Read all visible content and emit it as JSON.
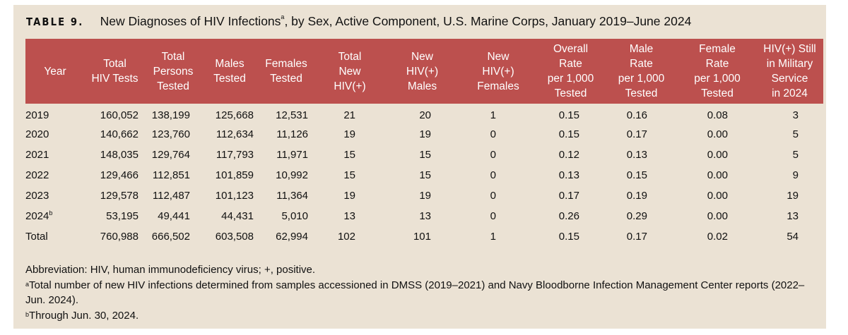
{
  "title": {
    "label": "TABLE 9.",
    "text": "New Diagnoses of HIV Infections",
    "sup": "a",
    "rest": ", by Sex, Active Component, U.S. Marine Corps, January 2019–June 2024"
  },
  "colors": {
    "header_bg": "#bc504e",
    "panel_bg": "#ebe2d4"
  },
  "headers": [
    [
      "Year"
    ],
    [
      "Total",
      "HIV Tests"
    ],
    [
      "Total",
      "Persons",
      "Tested"
    ],
    [
      "Males",
      "Tested"
    ],
    [
      "Females",
      "Tested"
    ],
    [
      "Total",
      "New",
      "HIV(+)"
    ],
    [
      "New",
      "HIV(+)",
      "Males"
    ],
    [
      "New",
      "HIV(+)",
      "Females"
    ],
    [
      "Overall",
      "Rate",
      "per 1,000",
      "Tested"
    ],
    [
      "Male",
      "Rate",
      "per 1,000",
      "Tested"
    ],
    [
      "Female",
      "Rate",
      "per 1,000",
      "Tested"
    ],
    [
      "HIV(+) Still",
      "in Military",
      "Service",
      "in 2024"
    ]
  ],
  "rows": [
    {
      "year": "2019",
      "sup": "",
      "cells": [
        "160,052",
        "138,199",
        "125,668",
        "12,531",
        "21",
        "20",
        "1",
        "0.15",
        "0.16",
        "0.08",
        "3"
      ]
    },
    {
      "year": "2020",
      "sup": "",
      "cells": [
        "140,662",
        "123,760",
        "112,634",
        "11,126",
        "19",
        "19",
        "0",
        "0.15",
        "0.17",
        "0.00",
        "5"
      ]
    },
    {
      "year": "2021",
      "sup": "",
      "cells": [
        "148,035",
        "129,764",
        "117,793",
        "11,971",
        "15",
        "15",
        "0",
        "0.12",
        "0.13",
        "0.00",
        "5"
      ]
    },
    {
      "year": "2022",
      "sup": "",
      "cells": [
        "129,466",
        "112,851",
        "101,859",
        "10,992",
        "15",
        "15",
        "0",
        "0.13",
        "0.15",
        "0.00",
        "9"
      ]
    },
    {
      "year": "2023",
      "sup": "",
      "cells": [
        "129,578",
        "112,487",
        "101,123",
        "11,364",
        "19",
        "19",
        "0",
        "0.17",
        "0.19",
        "0.00",
        "19"
      ]
    },
    {
      "year": "2024",
      "sup": "b",
      "cells": [
        "53,195",
        "49,441",
        "44,431",
        "5,010",
        "13",
        "13",
        "0",
        "0.26",
        "0.29",
        "0.00",
        "13"
      ]
    },
    {
      "year": "Total",
      "sup": "",
      "cells": [
        "760,988",
        "666,502",
        "603,508",
        "62,994",
        "102",
        "101",
        "1",
        "0.15",
        "0.17",
        "0.02",
        "54"
      ]
    }
  ],
  "notes": [
    {
      "sup": "",
      "text": "Abbreviation: HIV, human immunodeficiency virus; +, positive."
    },
    {
      "sup": "a",
      "text": "Total number of new HIV infections determined from samples accessioned in DMSS (2019–2021) and Navy Bloodborne Infection Management Center reports (2022–Jun. 2024)."
    },
    {
      "sup": "b",
      "text": "Through Jun. 30, 2024."
    }
  ]
}
